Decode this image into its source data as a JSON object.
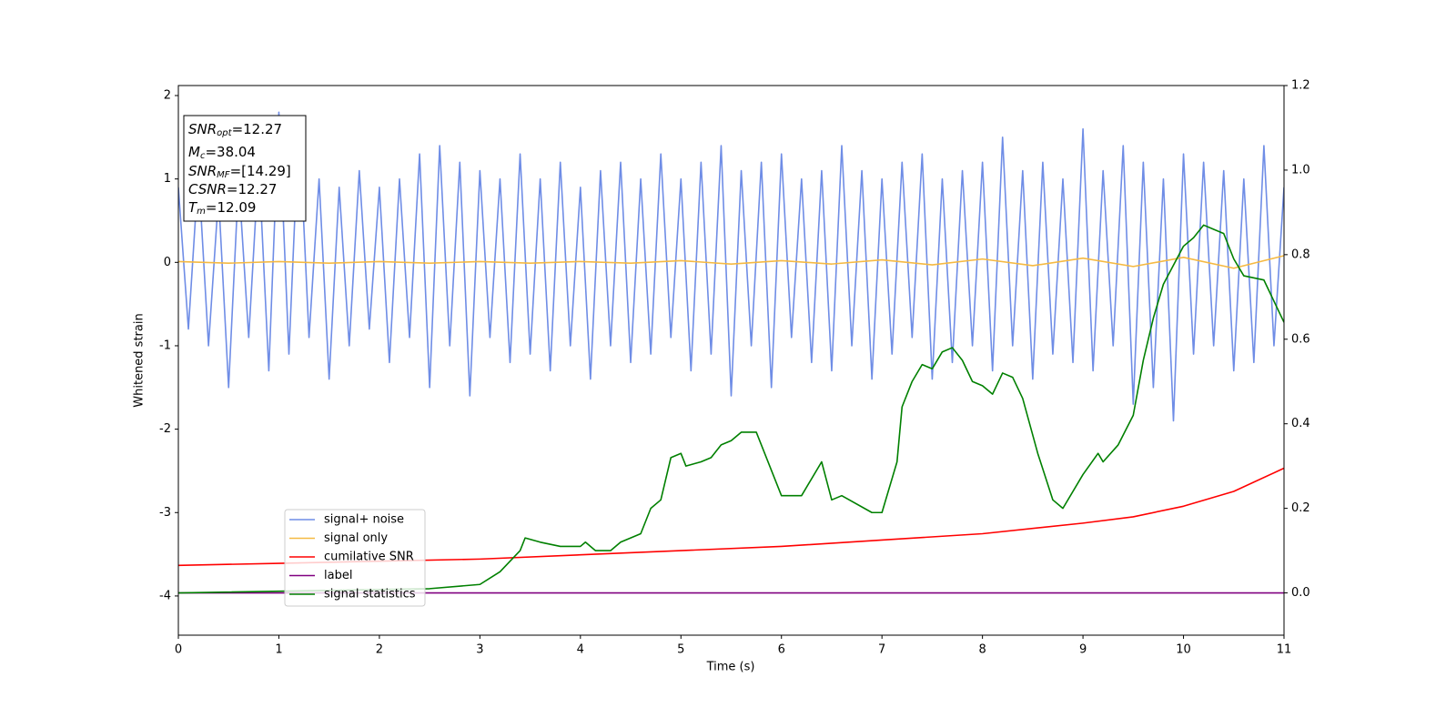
{
  "chart_data": {
    "type": "line",
    "xlabel": "Time (s)",
    "ylabel": "Whitened strain",
    "xlim": [
      0,
      11
    ],
    "ylim": [
      -4.47,
      2.12
    ],
    "y2lim": [
      -0.1,
      1.2
    ],
    "xticks": [
      0,
      1,
      2,
      3,
      4,
      5,
      6,
      7,
      8,
      9,
      10,
      11
    ],
    "yticks": [
      -4,
      -3,
      -2,
      -1,
      0,
      1,
      2
    ],
    "y2ticks": [
      {
        "value": 0,
        "label": "0.0"
      },
      0.2,
      0.4,
      0.6,
      0.8,
      {
        "value": 1,
        "label": "1.0"
      },
      1.2
    ],
    "legend": "lower left",
    "annotation": [
      {
        "name": "SNR",
        "sub": "opt",
        "text": "=12.27"
      },
      {
        "name": "M",
        "sub": "c",
        "text": "=38.04"
      },
      {
        "name": "SNR",
        "sub": "MF",
        "text": "=[14.29]"
      },
      {
        "name": "CSNR",
        "text": "=12.27"
      },
      {
        "name": "T",
        "sub": "m",
        "text": "=12.09"
      }
    ],
    "series": [
      {
        "name": "signal+ noise",
        "color": "#6f8de6",
        "axis": "y",
        "x": [
          0,
          0.1,
          0.2,
          0.3,
          0.4,
          0.5,
          0.6,
          0.7,
          0.8,
          0.9,
          1,
          1.1,
          1.2,
          1.3,
          1.4,
          1.5,
          1.6,
          1.7,
          1.8,
          1.9,
          2,
          2.1,
          2.2,
          2.3,
          2.4,
          2.5,
          2.6,
          2.7,
          2.8,
          2.9,
          3,
          3.1,
          3.2,
          3.3,
          3.4,
          3.5,
          3.6,
          3.7,
          3.8,
          3.9,
          4,
          4.1,
          4.2,
          4.3,
          4.4,
          4.5,
          4.6,
          4.7,
          4.8,
          4.9,
          5,
          5.1,
          5.2,
          5.3,
          5.4,
          5.5,
          5.6,
          5.7,
          5.8,
          5.9,
          6,
          6.1,
          6.2,
          6.3,
          6.4,
          6.5,
          6.6,
          6.7,
          6.8,
          6.9,
          7,
          7.1,
          7.2,
          7.3,
          7.4,
          7.5,
          7.6,
          7.7,
          7.8,
          7.9,
          8,
          8.1,
          8.2,
          8.3,
          8.4,
          8.5,
          8.6,
          8.7,
          8.8,
          8.9,
          9,
          9.1,
          9.2,
          9.3,
          9.4,
          9.5,
          9.6,
          9.7,
          9.8,
          9.9,
          10,
          10.1,
          10.2,
          10.3,
          10.4,
          10.5,
          10.6,
          10.7,
          10.8,
          10.9,
          11
        ],
        "values": [
          0.9,
          -0.8,
          1.1,
          -1.0,
          0.8,
          -1.5,
          1.0,
          -0.9,
          1.2,
          -1.3,
          1.8,
          -1.1,
          1.7,
          -0.9,
          1.0,
          -1.4,
          0.9,
          -1.0,
          1.1,
          -0.8,
          0.9,
          -1.2,
          1.0,
          -0.9,
          1.3,
          -1.5,
          1.4,
          -1.0,
          1.2,
          -1.6,
          1.1,
          -0.9,
          1.0,
          -1.2,
          1.3,
          -1.1,
          1.0,
          -1.3,
          1.2,
          -1.0,
          0.9,
          -1.4,
          1.1,
          -1.0,
          1.2,
          -1.2,
          1.0,
          -1.1,
          1.3,
          -0.9,
          1.0,
          -1.3,
          1.2,
          -1.1,
          1.4,
          -1.6,
          1.1,
          -1.0,
          1.2,
          -1.5,
          1.3,
          -0.9,
          1.0,
          -1.2,
          1.1,
          -1.3,
          1.4,
          -1.0,
          1.1,
          -1.4,
          1.0,
          -1.1,
          1.2,
          -0.9,
          1.3,
          -1.4,
          1.0,
          -1.2,
          1.1,
          -1.0,
          1.2,
          -1.3,
          1.5,
          -1.0,
          1.1,
          -1.4,
          1.2,
          -1.1,
          1.0,
          -1.2,
          1.6,
          -1.3,
          1.1,
          -1.0,
          1.4,
          -1.7,
          1.2,
          -1.5,
          1.0,
          -1.9,
          1.3,
          -1.1,
          1.2,
          -1.0,
          1.1,
          -1.3,
          1.0,
          -1.2,
          1.4,
          -1.0,
          0.9
        ]
      },
      {
        "name": "signal only",
        "color": "#f5b942",
        "axis": "y",
        "x": [
          0,
          0.5,
          1,
          1.5,
          2,
          2.5,
          3,
          3.5,
          4,
          4.5,
          5,
          5.5,
          6,
          6.5,
          7,
          7.5,
          8,
          8.5,
          9,
          9.5,
          10,
          10.5,
          11
        ],
        "values": [
          0.01,
          -0.01,
          0.01,
          -0.01,
          0.01,
          -0.01,
          0.01,
          -0.01,
          0.01,
          -0.01,
          0.02,
          -0.02,
          0.02,
          -0.02,
          0.03,
          -0.03,
          0.04,
          -0.04,
          0.05,
          -0.05,
          0.06,
          -0.07,
          0.08
        ]
      },
      {
        "name": "cumilative SNR",
        "color": "#ff0000",
        "axis": "y2",
        "x": [
          0,
          1,
          2,
          3,
          4,
          5,
          6,
          7,
          8,
          9,
          9.5,
          10,
          10.5,
          11
        ],
        "values": [
          0.065,
          0.07,
          0.075,
          0.08,
          0.09,
          0.1,
          0.11,
          0.125,
          0.14,
          0.165,
          0.18,
          0.205,
          0.24,
          0.295
        ]
      },
      {
        "name": "label",
        "color": "#800080",
        "axis": "y2",
        "x": [
          0,
          11
        ],
        "values": [
          0,
          0
        ]
      },
      {
        "name": "signal statistics",
        "color": "#008000",
        "axis": "y2",
        "x": [
          0,
          2.5,
          3,
          3.2,
          3.4,
          3.45,
          3.6,
          3.8,
          4,
          4.05,
          4.15,
          4.3,
          4.4,
          4.6,
          4.7,
          4.8,
          4.9,
          5,
          5.05,
          5.2,
          5.3,
          5.4,
          5.5,
          5.6,
          5.75,
          5.9,
          6,
          6.2,
          6.4,
          6.5,
          6.6,
          6.9,
          7,
          7.15,
          7.2,
          7.3,
          7.4,
          7.5,
          7.6,
          7.7,
          7.8,
          7.9,
          8,
          8.1,
          8.2,
          8.3,
          8.4,
          8.55,
          8.7,
          8.8,
          9,
          9.15,
          9.2,
          9.35,
          9.5,
          9.6,
          9.7,
          9.8,
          10,
          10.1,
          10.2,
          10.3,
          10.4,
          10.5,
          10.6,
          10.8,
          11
        ],
        "values": [
          0,
          0.01,
          0.02,
          0.05,
          0.1,
          0.13,
          0.12,
          0.11,
          0.11,
          0.12,
          0.1,
          0.1,
          0.12,
          0.14,
          0.2,
          0.22,
          0.32,
          0.33,
          0.3,
          0.31,
          0.32,
          0.35,
          0.36,
          0.38,
          0.38,
          0.29,
          0.23,
          0.23,
          0.31,
          0.22,
          0.23,
          0.19,
          0.19,
          0.31,
          0.44,
          0.5,
          0.54,
          0.53,
          0.57,
          0.58,
          0.55,
          0.5,
          0.49,
          0.47,
          0.52,
          0.51,
          0.46,
          0.33,
          0.22,
          0.2,
          0.28,
          0.33,
          0.31,
          0.35,
          0.42,
          0.55,
          0.65,
          0.73,
          0.82,
          0.84,
          0.87,
          0.86,
          0.85,
          0.79,
          0.75,
          0.74,
          0.64
        ]
      }
    ]
  }
}
